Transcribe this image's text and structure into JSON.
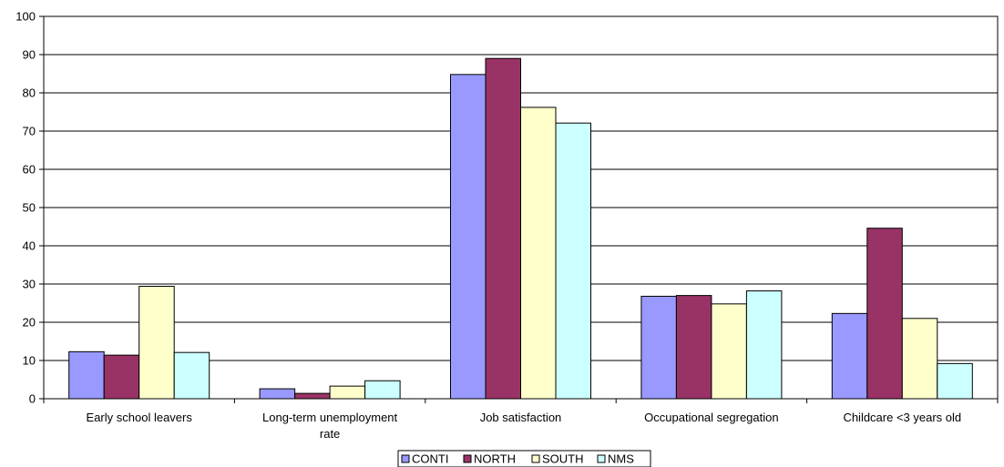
{
  "chart_data": {
    "type": "bar",
    "title": "",
    "xlabel": "",
    "ylabel": "",
    "categories": [
      [
        "Early school leavers"
      ],
      [
        "Long-term unemployment",
        "rate"
      ],
      [
        "Job satisfaction"
      ],
      [
        "Occupational segregation"
      ],
      [
        "Childcare <3 years old"
      ]
    ],
    "series": [
      {
        "name": "CONTI",
        "color": "#9999ff",
        "values": [
          12.3,
          2.6,
          84.8,
          26.8,
          22.3
        ]
      },
      {
        "name": "NORTH",
        "color": "#993366",
        "values": [
          11.4,
          1.4,
          89.0,
          27.0,
          44.6
        ]
      },
      {
        "name": "SOUTH",
        "color": "#ffffcc",
        "values": [
          29.4,
          3.3,
          76.2,
          24.8,
          21.0
        ]
      },
      {
        "name": "NMS",
        "color": "#ccffff",
        "values": [
          12.1,
          4.7,
          72.1,
          28.2,
          9.2
        ]
      }
    ],
    "ylim": [
      0,
      100
    ],
    "yticks": [
      0,
      10,
      20,
      30,
      40,
      50,
      60,
      70,
      80,
      90,
      100
    ],
    "grid": true,
    "legend_position": "bottom"
  }
}
